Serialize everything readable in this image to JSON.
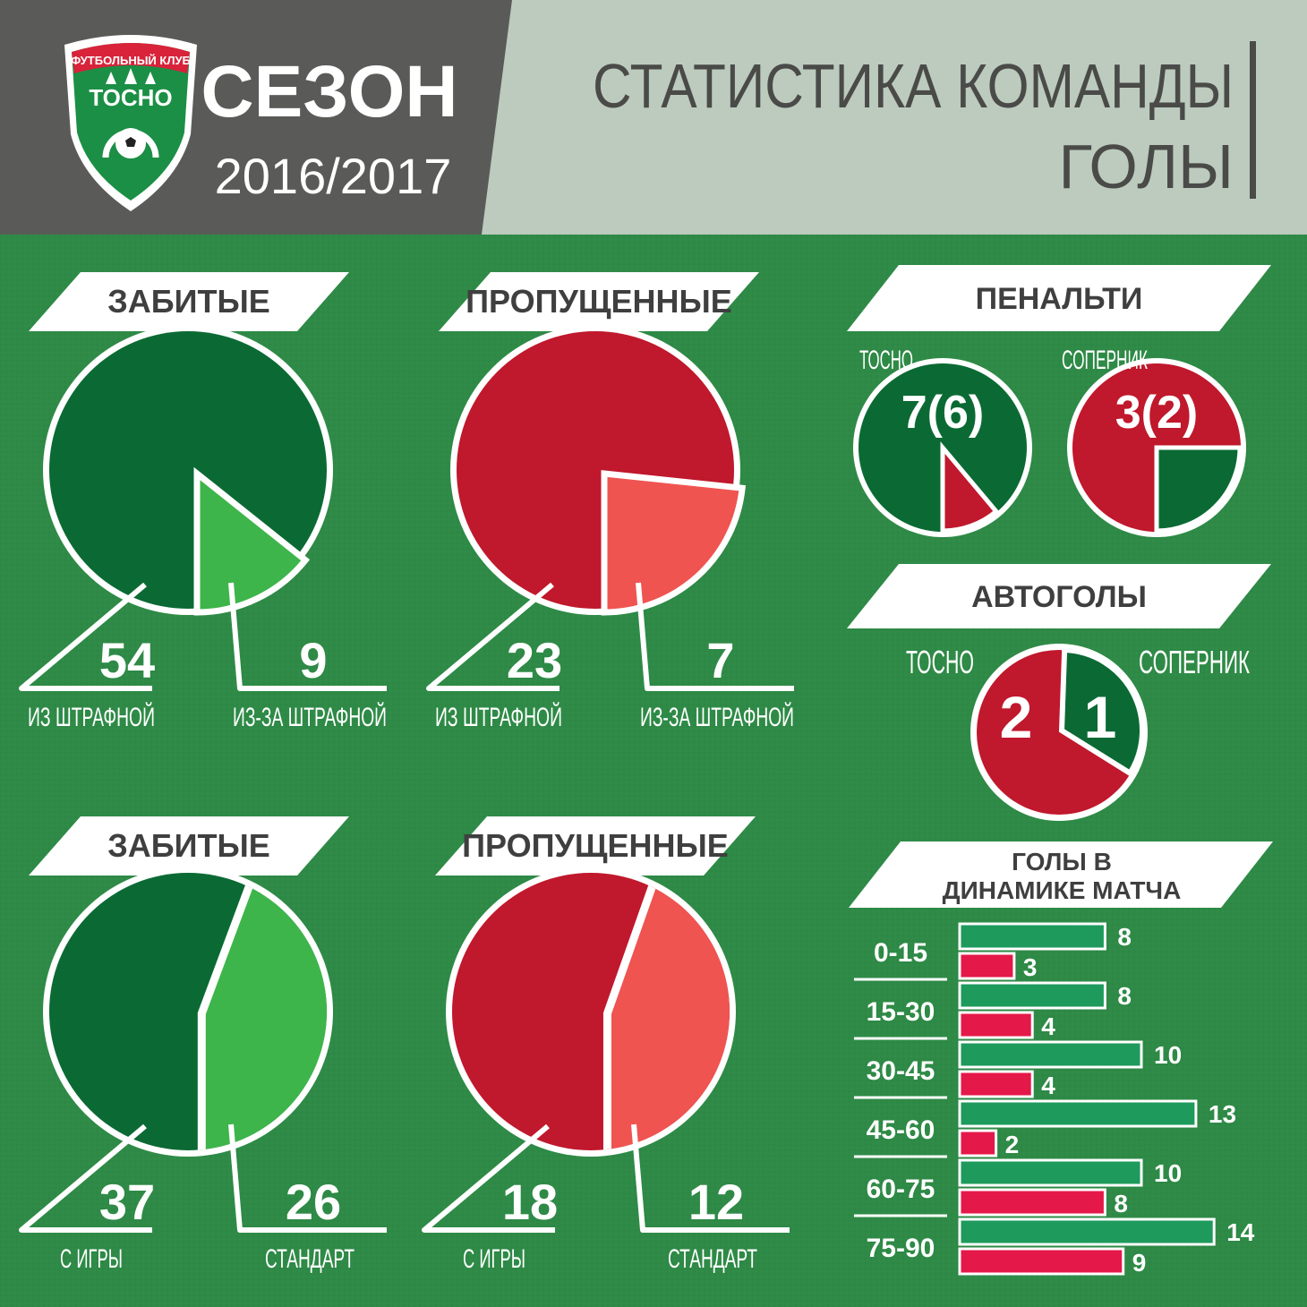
{
  "header": {
    "club_arc": "ФУТБОЛЬНЫЙ КЛУБ",
    "club_name": "ТОСНО",
    "season_label": "СЕЗОН",
    "season_years": "2016/2017",
    "title_line1": "СТАТИСТИКА КОМАНДЫ",
    "title_line2": "ГОЛЫ"
  },
  "colors": {
    "dark_green": "#0b6a34",
    "light_green": "#3db54a",
    "dark_red": "#c0182c",
    "light_red": "#ef5451",
    "bar_green": "#1e9a5c",
    "bar_pink": "#e5184a",
    "background": "#2e8a46",
    "header_left": "#5a5b59",
    "header_right": "#bccbbd"
  },
  "chart_data": [
    {
      "type": "pie",
      "title": "ЗАБИТЫЕ",
      "slices": [
        {
          "label": "ИЗ ШТРАФНОЙ",
          "value": 54
        },
        {
          "label": "ИЗ-ЗА ШТРАФНОЙ",
          "value": 9
        }
      ]
    },
    {
      "type": "pie",
      "title": "ПРОПУЩЕННЫЕ",
      "slices": [
        {
          "label": "ИЗ ШТРАФНОЙ",
          "value": 23
        },
        {
          "label": "ИЗ-ЗА ШТРАФНОЙ",
          "value": 7
        }
      ]
    },
    {
      "type": "pie",
      "title": "ЗАБИТЫЕ",
      "slices": [
        {
          "label": "С ИГРЫ",
          "value": 37
        },
        {
          "label": "СТАНДАРТ",
          "value": 26
        }
      ]
    },
    {
      "type": "pie",
      "title": "ПРОПУЩЕННЫЕ",
      "slices": [
        {
          "label": "С ИГРЫ",
          "value": 18
        },
        {
          "label": "СТАНДАРТ",
          "value": 12
        }
      ]
    },
    {
      "type": "pie",
      "title": "ПЕНАЛЬТИ",
      "teams": [
        {
          "label": "ТОСНО",
          "value_text": "7(6)",
          "awarded": 7,
          "scored": 6
        },
        {
          "label": "СОПЕРНИК",
          "value_text": "3(2)",
          "awarded": 3,
          "scored": 2
        }
      ]
    },
    {
      "type": "pie",
      "title": "АВТОГОЛЫ",
      "slices": [
        {
          "label": "ТОСНО",
          "value": 2
        },
        {
          "label": "СОПЕРНИК",
          "value": 1
        }
      ]
    },
    {
      "type": "bar",
      "title": "ГОЛЫ В ДИНАМИКЕ МАТЧА",
      "title_line1": "ГОЛЫ В",
      "title_line2": "ДИНАМИКЕ МАТЧА",
      "categories": [
        "0-15",
        "15-30",
        "30-45",
        "45-60",
        "60-75",
        "75-90"
      ],
      "series": [
        {
          "values": [
            8,
            8,
            10,
            13,
            10,
            14
          ]
        },
        {
          "values": [
            3,
            4,
            4,
            2,
            8,
            9
          ]
        }
      ]
    }
  ]
}
